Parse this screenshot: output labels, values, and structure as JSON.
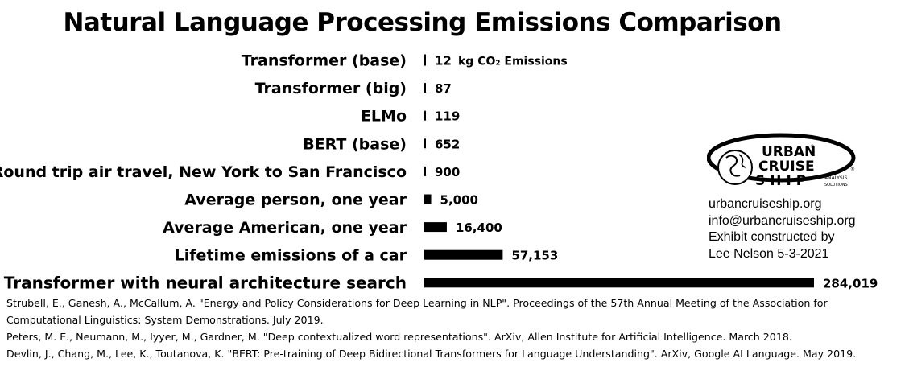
{
  "chart_data": {
    "type": "bar",
    "orientation": "horizontal",
    "title": "Natural Language Processing Emissions Comparison",
    "unit_label": "kg CO₂ Emissions",
    "categories": [
      "Transformer (base)",
      "Transformer (big)",
      "ELMo",
      "BERT (base)",
      "Round trip air travel, New York to San Francisco",
      "Average person, one year",
      "Average American, one year",
      "Lifetime emissions of a car",
      "Transformer with neural architecture search"
    ],
    "values": [
      12,
      87,
      119,
      652,
      900,
      5000,
      16400,
      57153,
      284019
    ],
    "value_labels": [
      "12",
      "87",
      "119",
      "652",
      "900",
      "5,000",
      "16,400",
      "57,153",
      "284,019"
    ],
    "xlim": [
      0,
      284019
    ],
    "grid": false,
    "bar_color": "#000000"
  },
  "branding": {
    "logo": {
      "line1": "URBAN",
      "line2": "CRUISE",
      "line3": "SHIP",
      "tag1": "ANALYSIS",
      "tag2": "SOLUTIONS",
      "mark": "®"
    },
    "website": "urbancruiseship.org",
    "email": "info@urbancruiseship.org",
    "credit1": "Exhibit constructed by",
    "credit2": "Lee Nelson 5-3-2021"
  },
  "references": [
    "Strubell, E., Ganesh, A., McCallum, A. \"Energy and Policy Considerations for Deep Learning in NLP\". Proceedings of the 57th Annual Meeting of the Association for Computational Linguistics: System Demonstrations. July 2019.",
    "Peters, M. E., Neumann, M., Iyyer, M., Gardner, M. \"Deep contextualized word representations\". ArXiv, Allen Institute for Artificial Intelligence. March 2018.",
    "Devlin, J., Chang, M., Lee, K., Toutanova, K. \"BERT: Pre-training of Deep Bidirectional Transformers for Language Understanding\". ArXiv, Google AI Language. May 2019."
  ]
}
